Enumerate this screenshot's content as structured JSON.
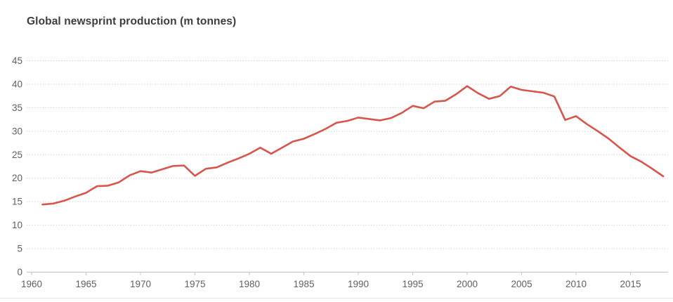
{
  "header": {
    "title": "Global newsprint production (m tonnes)"
  },
  "chart_data": {
    "type": "line",
    "title": "Global newsprint production (m tonnes)",
    "xlabel": "",
    "ylabel": "",
    "unit": "m tonnes",
    "ylim": [
      0,
      45
    ],
    "xlim": [
      1960,
      2018
    ],
    "yticks": [
      0,
      5,
      10,
      15,
      20,
      25,
      30,
      35,
      40,
      45
    ],
    "xticks": [
      1960,
      1965,
      1970,
      1975,
      1980,
      1985,
      1990,
      1995,
      2000,
      2005,
      2010,
      2015
    ],
    "grid": "horizontal-dotted",
    "legend": "none",
    "x": [
      1961,
      1962,
      1963,
      1964,
      1965,
      1966,
      1967,
      1968,
      1969,
      1970,
      1971,
      1972,
      1973,
      1974,
      1975,
      1976,
      1977,
      1978,
      1979,
      1980,
      1981,
      1982,
      1983,
      1984,
      1985,
      1986,
      1987,
      1988,
      1989,
      1990,
      1991,
      1992,
      1993,
      1994,
      1995,
      1996,
      1997,
      1998,
      1999,
      2000,
      2001,
      2002,
      2003,
      2004,
      2005,
      2006,
      2007,
      2008,
      2009,
      2010,
      2011,
      2012,
      2013,
      2014,
      2015,
      2016,
      2017,
      2018
    ],
    "series": [
      {
        "name": "Global newsprint production",
        "color": "#d9554b",
        "values": [
          14.4,
          14.6,
          15.2,
          16.1,
          16.9,
          18.3,
          18.4,
          19.1,
          20.6,
          21.5,
          21.2,
          21.9,
          22.6,
          22.7,
          20.5,
          22.0,
          22.3,
          23.3,
          24.2,
          25.2,
          26.5,
          25.2,
          26.5,
          27.8,
          28.4,
          29.4,
          30.5,
          31.8,
          32.2,
          32.9,
          32.6,
          32.3,
          32.8,
          33.9,
          35.4,
          34.9,
          36.3,
          36.5,
          37.9,
          39.6,
          38.1,
          36.9,
          37.5,
          39.5,
          38.8,
          38.5,
          38.2,
          37.4,
          32.4,
          33.2,
          31.5,
          30.0,
          28.4,
          26.5,
          24.7,
          23.5,
          22.0,
          20.4
        ]
      }
    ],
    "colors": {
      "line": "#d9554b",
      "gridline": "#c9c9c9",
      "zero_axis": "#c2c2c2",
      "tick_label": "#606060",
      "title": "#3d3d3d",
      "divider": "#e6e6e6",
      "background": "#ffffff"
    }
  }
}
